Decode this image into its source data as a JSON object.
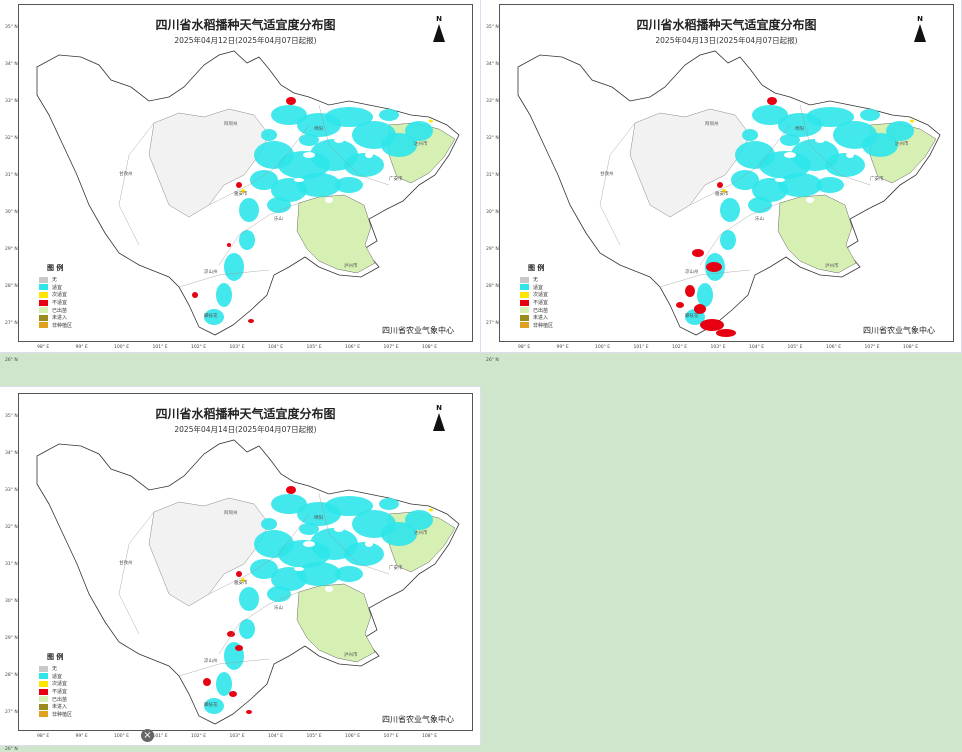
{
  "panels": [
    {
      "title": "四川省水稻播种天气适宜度分布图",
      "subtitle": "2025年04月12日(2025年04月07日起报)"
    },
    {
      "title": "四川省水稻播种天气适宜度分布图",
      "subtitle": "2025年04月13日(2025年04月07日起报)"
    },
    {
      "title": "四川省水稻播种天气适宜度分布图",
      "subtitle": "2025年04月14日(2025年04月07日起报)"
    }
  ],
  "north_label": "N",
  "legend": {
    "title": "图  例",
    "items": [
      {
        "label": "无",
        "color": "#c8c8c8"
      },
      {
        "label": "适宜",
        "color": "#2ee6ea"
      },
      {
        "label": "次适宜",
        "color": "#ffe600"
      },
      {
        "label": "不适宜",
        "color": "#e60012"
      },
      {
        "label": "已出苗",
        "color": "#d6f0b4"
      },
      {
        "label": "未进入",
        "color": "#9b8a1e"
      },
      {
        "label": "非种植区",
        "color": "#e0a020"
      }
    ]
  },
  "credit": "四川省农业气象中心",
  "lat_ticks": [
    "35° N",
    "34° N",
    "33° N",
    "32° N",
    "31° N",
    "30° N",
    "29° N",
    "28° N",
    "27° N",
    "26° N"
  ],
  "lon_ticks": [
    "98° E",
    "99° E",
    "100° E",
    "101° E",
    "102° E",
    "103° E",
    "104° E",
    "105° E",
    "106° E",
    "107° E",
    "108° E"
  ],
  "city_labels": [
    "阿坝州",
    "甘孜州",
    "绵阳",
    "达州市",
    "广安市",
    "雅安市",
    "乐山",
    "泸州市",
    "凉山州",
    "攀枝花"
  ],
  "close_symbol": "×",
  "colors": {
    "background": "#cfe6cc"
  }
}
